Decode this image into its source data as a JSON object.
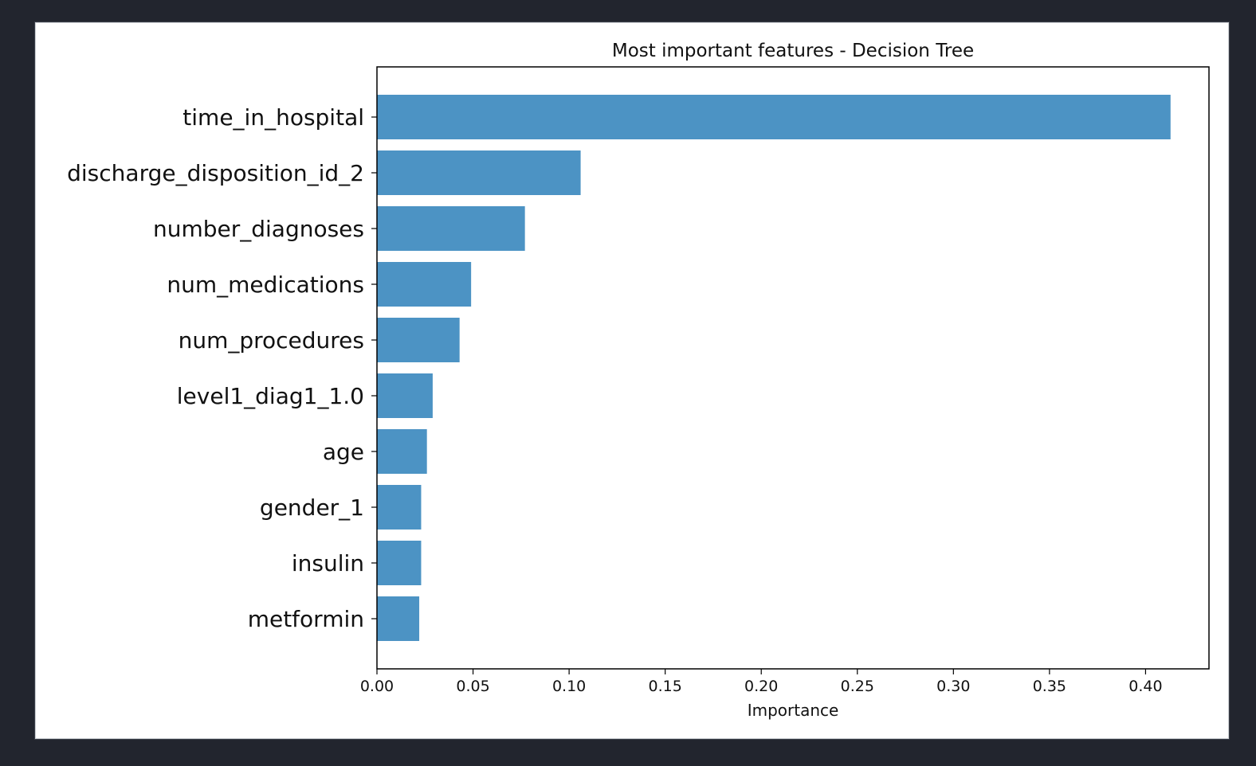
{
  "chart_data": {
    "type": "bar",
    "orientation": "horizontal",
    "title": "Most important features - Decision Tree",
    "xlabel": "Importance",
    "ylabel": "",
    "categories": [
      "time_in_hospital",
      "discharge_disposition_id_2",
      "number_diagnoses",
      "num_medications",
      "num_procedures",
      "level1_diag1_1.0",
      "age",
      "gender_1",
      "insulin",
      "metformin"
    ],
    "values": [
      0.413,
      0.106,
      0.077,
      0.049,
      0.043,
      0.029,
      0.026,
      0.023,
      0.023,
      0.022
    ],
    "xlim": [
      0.0,
      0.433
    ],
    "xticks": [
      "0.00",
      "0.05",
      "0.10",
      "0.15",
      "0.20",
      "0.25",
      "0.30",
      "0.35",
      "0.40"
    ],
    "grid": false,
    "bar_color": "#4c93c4"
  }
}
